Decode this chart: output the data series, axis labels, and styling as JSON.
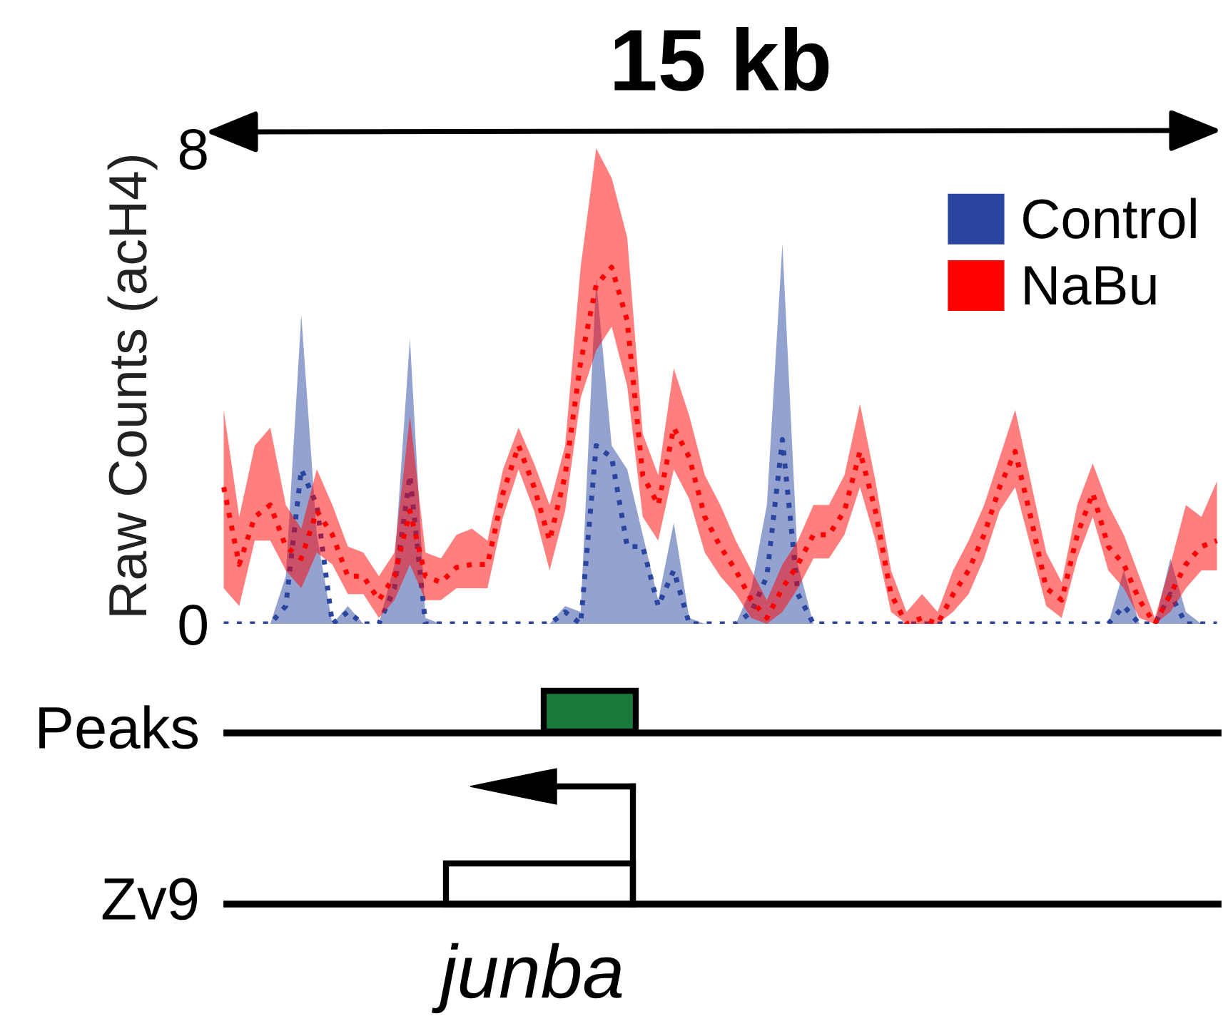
{
  "chart_data": {
    "type": "line",
    "title": "15 kb",
    "ylabel": "Raw Counts (acH4)",
    "categories": [
      null,
      null,
      null,
      null,
      null,
      null,
      null,
      null,
      null,
      null,
      null,
      null,
      null,
      null,
      null,
      null,
      null,
      null,
      null,
      null,
      null,
      null,
      null,
      null,
      null,
      null,
      null,
      null,
      null,
      null,
      null,
      null,
      null,
      null,
      null,
      null,
      null,
      null,
      null,
      null,
      null,
      null,
      null,
      null,
      null,
      null,
      null,
      null,
      null,
      null,
      null,
      null,
      null,
      null,
      null,
      null,
      null,
      null,
      null,
      null,
      null,
      null,
      null,
      null,
      null
    ],
    "series": [
      {
        "name": "Control",
        "color": "#2a45a0",
        "values": [
          0,
          0,
          0,
          0,
          0.3,
          2.6,
          2.0,
          0,
          0.2,
          0,
          0,
          0.6,
          2.5,
          0,
          0,
          0,
          0,
          0,
          0,
          0,
          0,
          0,
          0.2,
          0,
          3.0,
          2.8,
          1.3,
          1.3,
          0.3,
          0.9,
          0,
          0,
          0,
          0,
          0.2,
          0.8,
          3.1,
          0.5,
          0,
          0,
          0,
          0,
          0,
          0,
          0,
          0,
          0,
          0,
          0,
          0,
          0,
          0,
          0,
          0,
          0,
          0,
          0,
          0,
          0.3,
          0,
          0,
          0.5,
          0,
          0,
          0
        ],
        "lower": [
          0,
          0,
          0,
          0,
          0,
          0,
          0,
          0,
          0,
          0,
          0,
          0,
          0,
          0,
          0,
          0,
          0,
          0,
          0,
          0,
          0,
          0,
          0,
          0,
          0,
          0,
          0,
          0,
          0,
          0,
          0,
          0,
          0,
          0,
          0,
          0,
          0,
          0,
          0,
          0,
          0,
          0,
          0,
          0,
          0,
          0,
          0,
          0,
          0,
          0,
          0,
          0,
          0,
          0,
          0,
          0,
          0,
          0,
          0,
          0,
          0,
          0,
          0,
          0,
          0
        ],
        "upper": [
          0,
          0,
          0,
          0,
          0.8,
          5.2,
          1.5,
          0,
          0.3,
          0,
          0,
          1.0,
          4.8,
          0.1,
          0,
          0,
          0,
          0,
          0,
          0,
          0,
          0,
          0.3,
          0.2,
          5.8,
          3.0,
          2.6,
          1.5,
          0.4,
          1.7,
          0.1,
          0,
          0,
          0,
          0.6,
          2.0,
          6.4,
          1.0,
          0,
          0,
          0,
          0,
          0,
          0,
          0,
          0,
          0,
          0,
          0,
          0,
          0,
          0,
          0,
          0,
          0,
          0,
          0,
          0,
          0.9,
          0,
          0,
          1.1,
          0.2,
          0,
          0
        ]
      },
      {
        "name": "NaBu",
        "color": "#ff0000",
        "values": [
          2.3,
          1.0,
          1.8,
          2.0,
          1.3,
          1.1,
          1.9,
          1.5,
          0.8,
          0.8,
          0.4,
          0.8,
          1.9,
          0.8,
          0.7,
          0.95,
          1.0,
          1.0,
          2.2,
          3.0,
          2.3,
          1.4,
          2.5,
          4.4,
          5.7,
          6.0,
          5.1,
          2.5,
          2.0,
          3.3,
          2.8,
          1.8,
          1.3,
          0.9,
          0.4,
          0.1,
          0.6,
          1.0,
          1.5,
          1.5,
          1.9,
          2.9,
          1.9,
          0.5,
          0,
          0.1,
          0,
          0.5,
          0.9,
          1.5,
          2.3,
          2.9,
          1.8,
          0.6,
          0.4,
          1.5,
          2.2,
          1.3,
          1.0,
          0.4,
          0,
          0.5,
          1.0,
          1.3,
          1.4
        ],
        "lower": [
          0.6,
          0.3,
          1.4,
          1.4,
          0.9,
          0.6,
          1.2,
          1.0,
          0.5,
          0.5,
          0.1,
          0.4,
          1.0,
          0.4,
          0.4,
          0.6,
          0.6,
          0.6,
          1.8,
          2.6,
          1.9,
          0.9,
          1.9,
          3.8,
          4.6,
          5.0,
          4.0,
          1.8,
          1.4,
          2.6,
          2.1,
          1.2,
          0.8,
          0.5,
          0.1,
          0,
          0.2,
          0.6,
          1.1,
          1.1,
          1.5,
          2.3,
          1.4,
          0.2,
          0,
          0,
          0,
          0.2,
          0.5,
          1.1,
          1.9,
          2.3,
          1.3,
          0.3,
          0.1,
          1.1,
          1.8,
          0.9,
          0.6,
          0.1,
          0,
          0.2,
          0.6,
          0.9,
          0.9
        ],
        "upper": [
          3.6,
          1.8,
          3.0,
          3.3,
          2.0,
          1.6,
          2.6,
          2.0,
          1.3,
          1.2,
          0.8,
          1.2,
          3.5,
          1.2,
          1.1,
          1.5,
          1.6,
          1.4,
          2.6,
          3.3,
          2.7,
          2.0,
          3.0,
          6.0,
          8.0,
          7.5,
          6.5,
          3.2,
          2.5,
          4.3,
          3.5,
          2.5,
          2.0,
          1.4,
          0.9,
          0.4,
          1.0,
          1.4,
          2.0,
          2.0,
          2.5,
          3.7,
          2.4,
          0.9,
          0.2,
          0.5,
          0.2,
          0.9,
          1.4,
          2.0,
          2.8,
          3.6,
          2.4,
          1.2,
          0.7,
          2.0,
          2.7,
          2.0,
          1.5,
          0.8,
          0.1,
          1.0,
          2.0,
          1.8,
          2.4
        ]
      }
    ],
    "ylim": [
      0,
      8
    ],
    "yticks": [
      0,
      8
    ],
    "line_style": "dotted",
    "legend": "top right",
    "grid": false,
    "annotations": [
      "Peaks",
      "Zv9",
      "junba"
    ]
  }
}
